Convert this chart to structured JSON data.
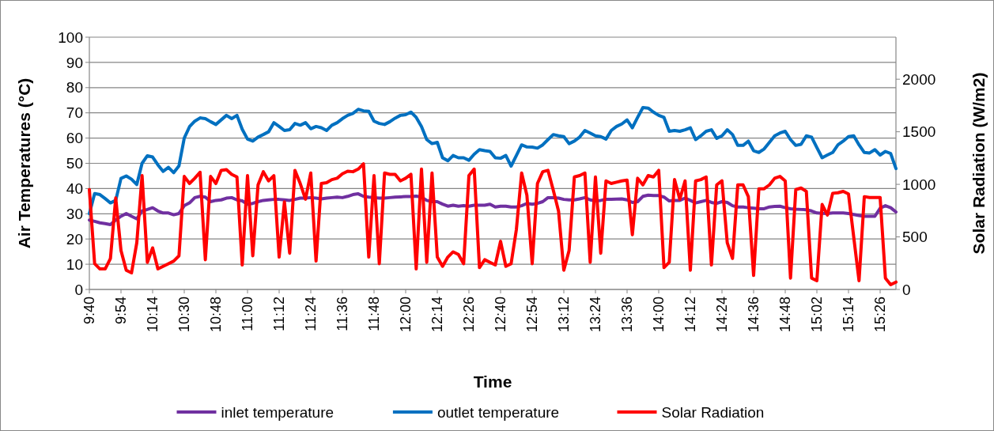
{
  "chart_data": {
    "type": "line",
    "xlabel": "Time",
    "ylabel": "Air Temperatures (°C)",
    "y2label": "Solar Radiation (W/m2)",
    "categories": [
      "9:40",
      null,
      null,
      null,
      null,
      null,
      "9:54",
      null,
      null,
      null,
      null,
      null,
      "10:14",
      null,
      null,
      null,
      null,
      null,
      "10:30",
      null,
      null,
      null,
      null,
      null,
      "10:48",
      null,
      null,
      null,
      null,
      null,
      "11:00",
      null,
      null,
      null,
      null,
      null,
      "11:12",
      null,
      null,
      null,
      null,
      null,
      "11:24",
      null,
      null,
      null,
      null,
      null,
      "11:36",
      null,
      null,
      null,
      null,
      null,
      "11:48",
      null,
      null,
      null,
      null,
      null,
      "12:00",
      null,
      null,
      null,
      null,
      null,
      "12:14",
      null,
      null,
      null,
      null,
      null,
      "12:26",
      null,
      null,
      null,
      null,
      null,
      "12:40",
      null,
      null,
      null,
      null,
      null,
      "12:54",
      null,
      null,
      null,
      null,
      null,
      "13:12",
      null,
      null,
      null,
      null,
      null,
      "13:24",
      null,
      null,
      null,
      null,
      null,
      "13:36",
      null,
      null,
      null,
      null,
      null,
      "14:00",
      null,
      null,
      null,
      null,
      null,
      "14:12",
      null,
      null,
      null,
      null,
      null,
      "14:24",
      null,
      null,
      null,
      null,
      null,
      "14:36",
      null,
      null,
      null,
      null,
      null,
      "14:48",
      null,
      null,
      null,
      null,
      null,
      "15:02",
      null,
      null,
      null,
      null,
      null,
      "15:14",
      null,
      null,
      null,
      null,
      null,
      "15:26",
      null,
      null,
      null
    ],
    "series": [
      {
        "name": "inlet temperature",
        "color": "#7030a0",
        "values": [
          27.5,
          27,
          26.4,
          26.1,
          25.7,
          27.5,
          29,
          30.1,
          29,
          28,
          31.1,
          31.7,
          32.4,
          31.1,
          30.3,
          30.3,
          29.6,
          30.1,
          33.2,
          34.3,
          36.4,
          36.9,
          36.6,
          34.8,
          35.3,
          35.5,
          36.2,
          36.4,
          35.5,
          35.1,
          33.8,
          34.1,
          34.8,
          35.3,
          35.5,
          35.7,
          35.7,
          35.5,
          35.3,
          35.7,
          36.2,
          36.2,
          36.4,
          36.2,
          35.9,
          36.2,
          36.4,
          36.6,
          36.4,
          36.9,
          37.6,
          37.9,
          36.9,
          36.6,
          36.4,
          36.2,
          36.2,
          36.4,
          36.6,
          36.7,
          36.8,
          36.8,
          37,
          36.6,
          35.3,
          34.8,
          34.8,
          33.8,
          33,
          33.4,
          33,
          33.2,
          33,
          33.4,
          33.4,
          33.4,
          33.8,
          32.7,
          33,
          33,
          32.7,
          32.7,
          33.2,
          34.1,
          33.8,
          34.1,
          34.8,
          36.4,
          36.4,
          36.2,
          35.7,
          35.5,
          35.5,
          35.9,
          36.4,
          35.5,
          35.1,
          35.3,
          35.7,
          35.7,
          35.8,
          35.9,
          35.5,
          34.5,
          34.8,
          36.9,
          37.4,
          37.2,
          37.2,
          36.6,
          35.1,
          35.3,
          35.3,
          36.2,
          35.3,
          34.3,
          34.8,
          35.3,
          34.5,
          34.1,
          34.8,
          34.5,
          33.2,
          32.7,
          32.7,
          32.4,
          32.2,
          32,
          32,
          32.7,
          32.9,
          33,
          32.4,
          32,
          31.8,
          31.7,
          31.6,
          31.1,
          30.3,
          30.2,
          30.1,
          30.3,
          30.3,
          30.3,
          30.1,
          29.7,
          29.3,
          29,
          29,
          29,
          32.2,
          33.2,
          32.4,
          30.7
        ]
      },
      {
        "name": "outlet temperature",
        "color": "#0070c0",
        "values": [
          30,
          38,
          37.6,
          36,
          34.3,
          35.3,
          44,
          45,
          43.7,
          41.6,
          50,
          53,
          52.5,
          49.4,
          46.8,
          48.4,
          46.3,
          49,
          60,
          64.5,
          66.7,
          68,
          67.7,
          66.5,
          65.4,
          67.2,
          69,
          67.7,
          69,
          63.5,
          59.6,
          58.8,
          60.4,
          61.4,
          62.5,
          66.1,
          64.6,
          63,
          63.3,
          65.8,
          65.1,
          66.1,
          63.7,
          64.6,
          64.1,
          63,
          65.1,
          66.1,
          67.7,
          69,
          69.8,
          71.4,
          70.8,
          70.6,
          66.7,
          65.8,
          65.4,
          66.5,
          67.9,
          69,
          69.3,
          70.3,
          68.2,
          64.6,
          59.4,
          57.8,
          58.3,
          52.2,
          51,
          53.1,
          52.2,
          52.2,
          51.2,
          53.6,
          55.4,
          55,
          54.7,
          52.2,
          52,
          53.1,
          48.9,
          53.1,
          57.3,
          56.5,
          56.4,
          56,
          57.3,
          59.4,
          61.4,
          60.9,
          60.6,
          57.8,
          58.8,
          60.4,
          63,
          62,
          60.9,
          60.6,
          59.6,
          63,
          64.6,
          65.6,
          67.2,
          64.1,
          68.2,
          72.1,
          71.9,
          70.3,
          69,
          68.2,
          62.7,
          63,
          62.7,
          63.3,
          64.1,
          59.4,
          60.9,
          62.7,
          63.3,
          59.9,
          60.9,
          63.3,
          61.4,
          57.1,
          57.1,
          58.8,
          55,
          54.3,
          55.7,
          58.3,
          60.9,
          62,
          62.7,
          59.4,
          57.1,
          57.5,
          60.9,
          60.4,
          56.2,
          52.2,
          53.3,
          54.3,
          57.3,
          58.8,
          60.6,
          60.9,
          57.3,
          54.3,
          54.1,
          55.4,
          53.3,
          54.7,
          53.9,
          47.9
        ]
      },
      {
        "name": "Solar Radiation",
        "color": "#ff0000",
        "axis": "y2",
        "values": [
          950,
          245,
          195,
          195,
          295,
          870,
          370,
          183,
          158,
          445,
          1083,
          258,
          395,
          195,
          220,
          245,
          270,
          320,
          1075,
          1008,
          1058,
          1115,
          283,
          1075,
          1008,
          1133,
          1140,
          1095,
          1070,
          233,
          1083,
          320,
          995,
          1120,
          1033,
          1083,
          308,
          833,
          345,
          1133,
          1008,
          858,
          1108,
          270,
          1008,
          1015,
          1045,
          1058,
          1100,
          1125,
          1120,
          1145,
          1195,
          308,
          1083,
          245,
          1108,
          1095,
          1095,
          1033,
          1058,
          1095,
          195,
          1145,
          258,
          1108,
          308,
          220,
          308,
          358,
          333,
          245,
          1083,
          1145,
          208,
          283,
          258,
          233,
          458,
          220,
          245,
          570,
          1108,
          895,
          245,
          1008,
          1120,
          1133,
          945,
          745,
          183,
          370,
          1070,
          1083,
          1108,
          258,
          1070,
          345,
          1033,
          1008,
          1020,
          1033,
          1040,
          520,
          1058,
          995,
          1083,
          1070,
          1133,
          208,
          258,
          1045,
          858,
          1033,
          183,
          1033,
          1045,
          1070,
          233,
          995,
          1033,
          445,
          295,
          995,
          995,
          883,
          133,
          958,
          958,
          995,
          1058,
          1075,
          1033,
          108,
          950,
          965,
          933,
          108,
          83,
          808,
          708,
          915,
          920,
          933,
          908,
          495,
          83,
          883,
          875,
          875,
          875,
          108,
          45,
          70
        ]
      }
    ],
    "ylim": [
      0,
      100
    ],
    "yticks": [
      0,
      10,
      20,
      30,
      40,
      50,
      60,
      70,
      80,
      90,
      100
    ],
    "y2lim": [
      0,
      2400
    ],
    "y2ticks": [
      0,
      500,
      1000,
      1500,
      2000
    ],
    "grid": "y",
    "legend": "bottom"
  }
}
